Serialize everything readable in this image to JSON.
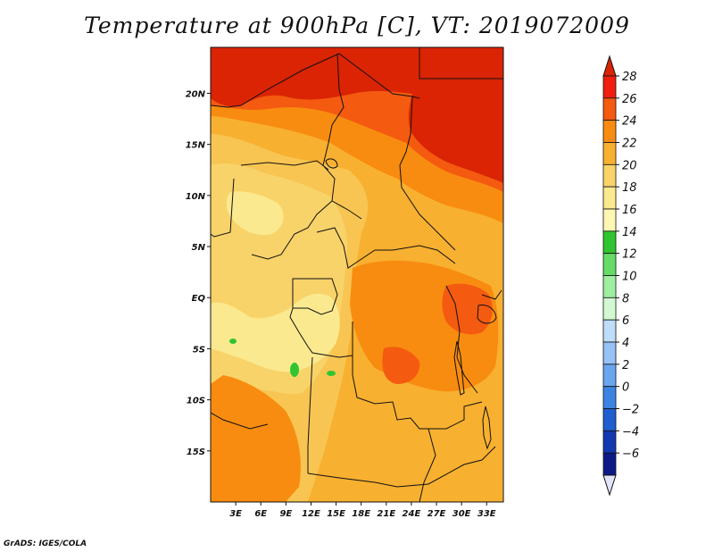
{
  "title": "Temperature at 900hPa [C], VT: 2019072009",
  "credit": "GrADS: IGES/COLA",
  "map": {
    "lon_range": [
      0,
      35
    ],
    "lat_range": [
      -20,
      24.5
    ],
    "lat_ticks": [
      {
        "value": 20,
        "label": "20N"
      },
      {
        "value": 15,
        "label": "15N"
      },
      {
        "value": 10,
        "label": "10N"
      },
      {
        "value": 5,
        "label": "5N"
      },
      {
        "value": 0,
        "label": "EQ"
      },
      {
        "value": -5,
        "label": "5S"
      },
      {
        "value": -10,
        "label": "10S"
      },
      {
        "value": -15,
        "label": "15S"
      }
    ],
    "lon_ticks": [
      {
        "value": 3,
        "label": "3E"
      },
      {
        "value": 6,
        "label": "6E"
      },
      {
        "value": 9,
        "label": "9E"
      },
      {
        "value": 12,
        "label": "12E"
      },
      {
        "value": 15,
        "label": "15E"
      },
      {
        "value": 18,
        "label": "18E"
      },
      {
        "value": 21,
        "label": "21E"
      },
      {
        "value": 24,
        "label": "24E"
      },
      {
        "value": 27,
        "label": "27E"
      },
      {
        "value": 30,
        "label": "30E"
      },
      {
        "value": 33,
        "label": "33E"
      }
    ]
  },
  "colorbar": {
    "levels": [
      "28",
      "26",
      "24",
      "22",
      "20",
      "18",
      "16",
      "14",
      "12",
      "10",
      "8",
      "6",
      "4",
      "2",
      "0",
      "−2",
      "−4",
      "−6"
    ],
    "colors": [
      "#f01e0f",
      "#f45a10",
      "#f88c10",
      "#f8b030",
      "#f8d36a",
      "#fbe98f",
      "#fdf6b4",
      "#31c431",
      "#66db66",
      "#a0eea0",
      "#d2f8d2",
      "#bfdcf8",
      "#96c2f5",
      "#6aa6ee",
      "#3c84e1",
      "#1e5ecf",
      "#1339b0",
      "#0c1a85"
    ],
    "top_color": "#da2404",
    "bottom_color": "#e3e3fa"
  }
}
